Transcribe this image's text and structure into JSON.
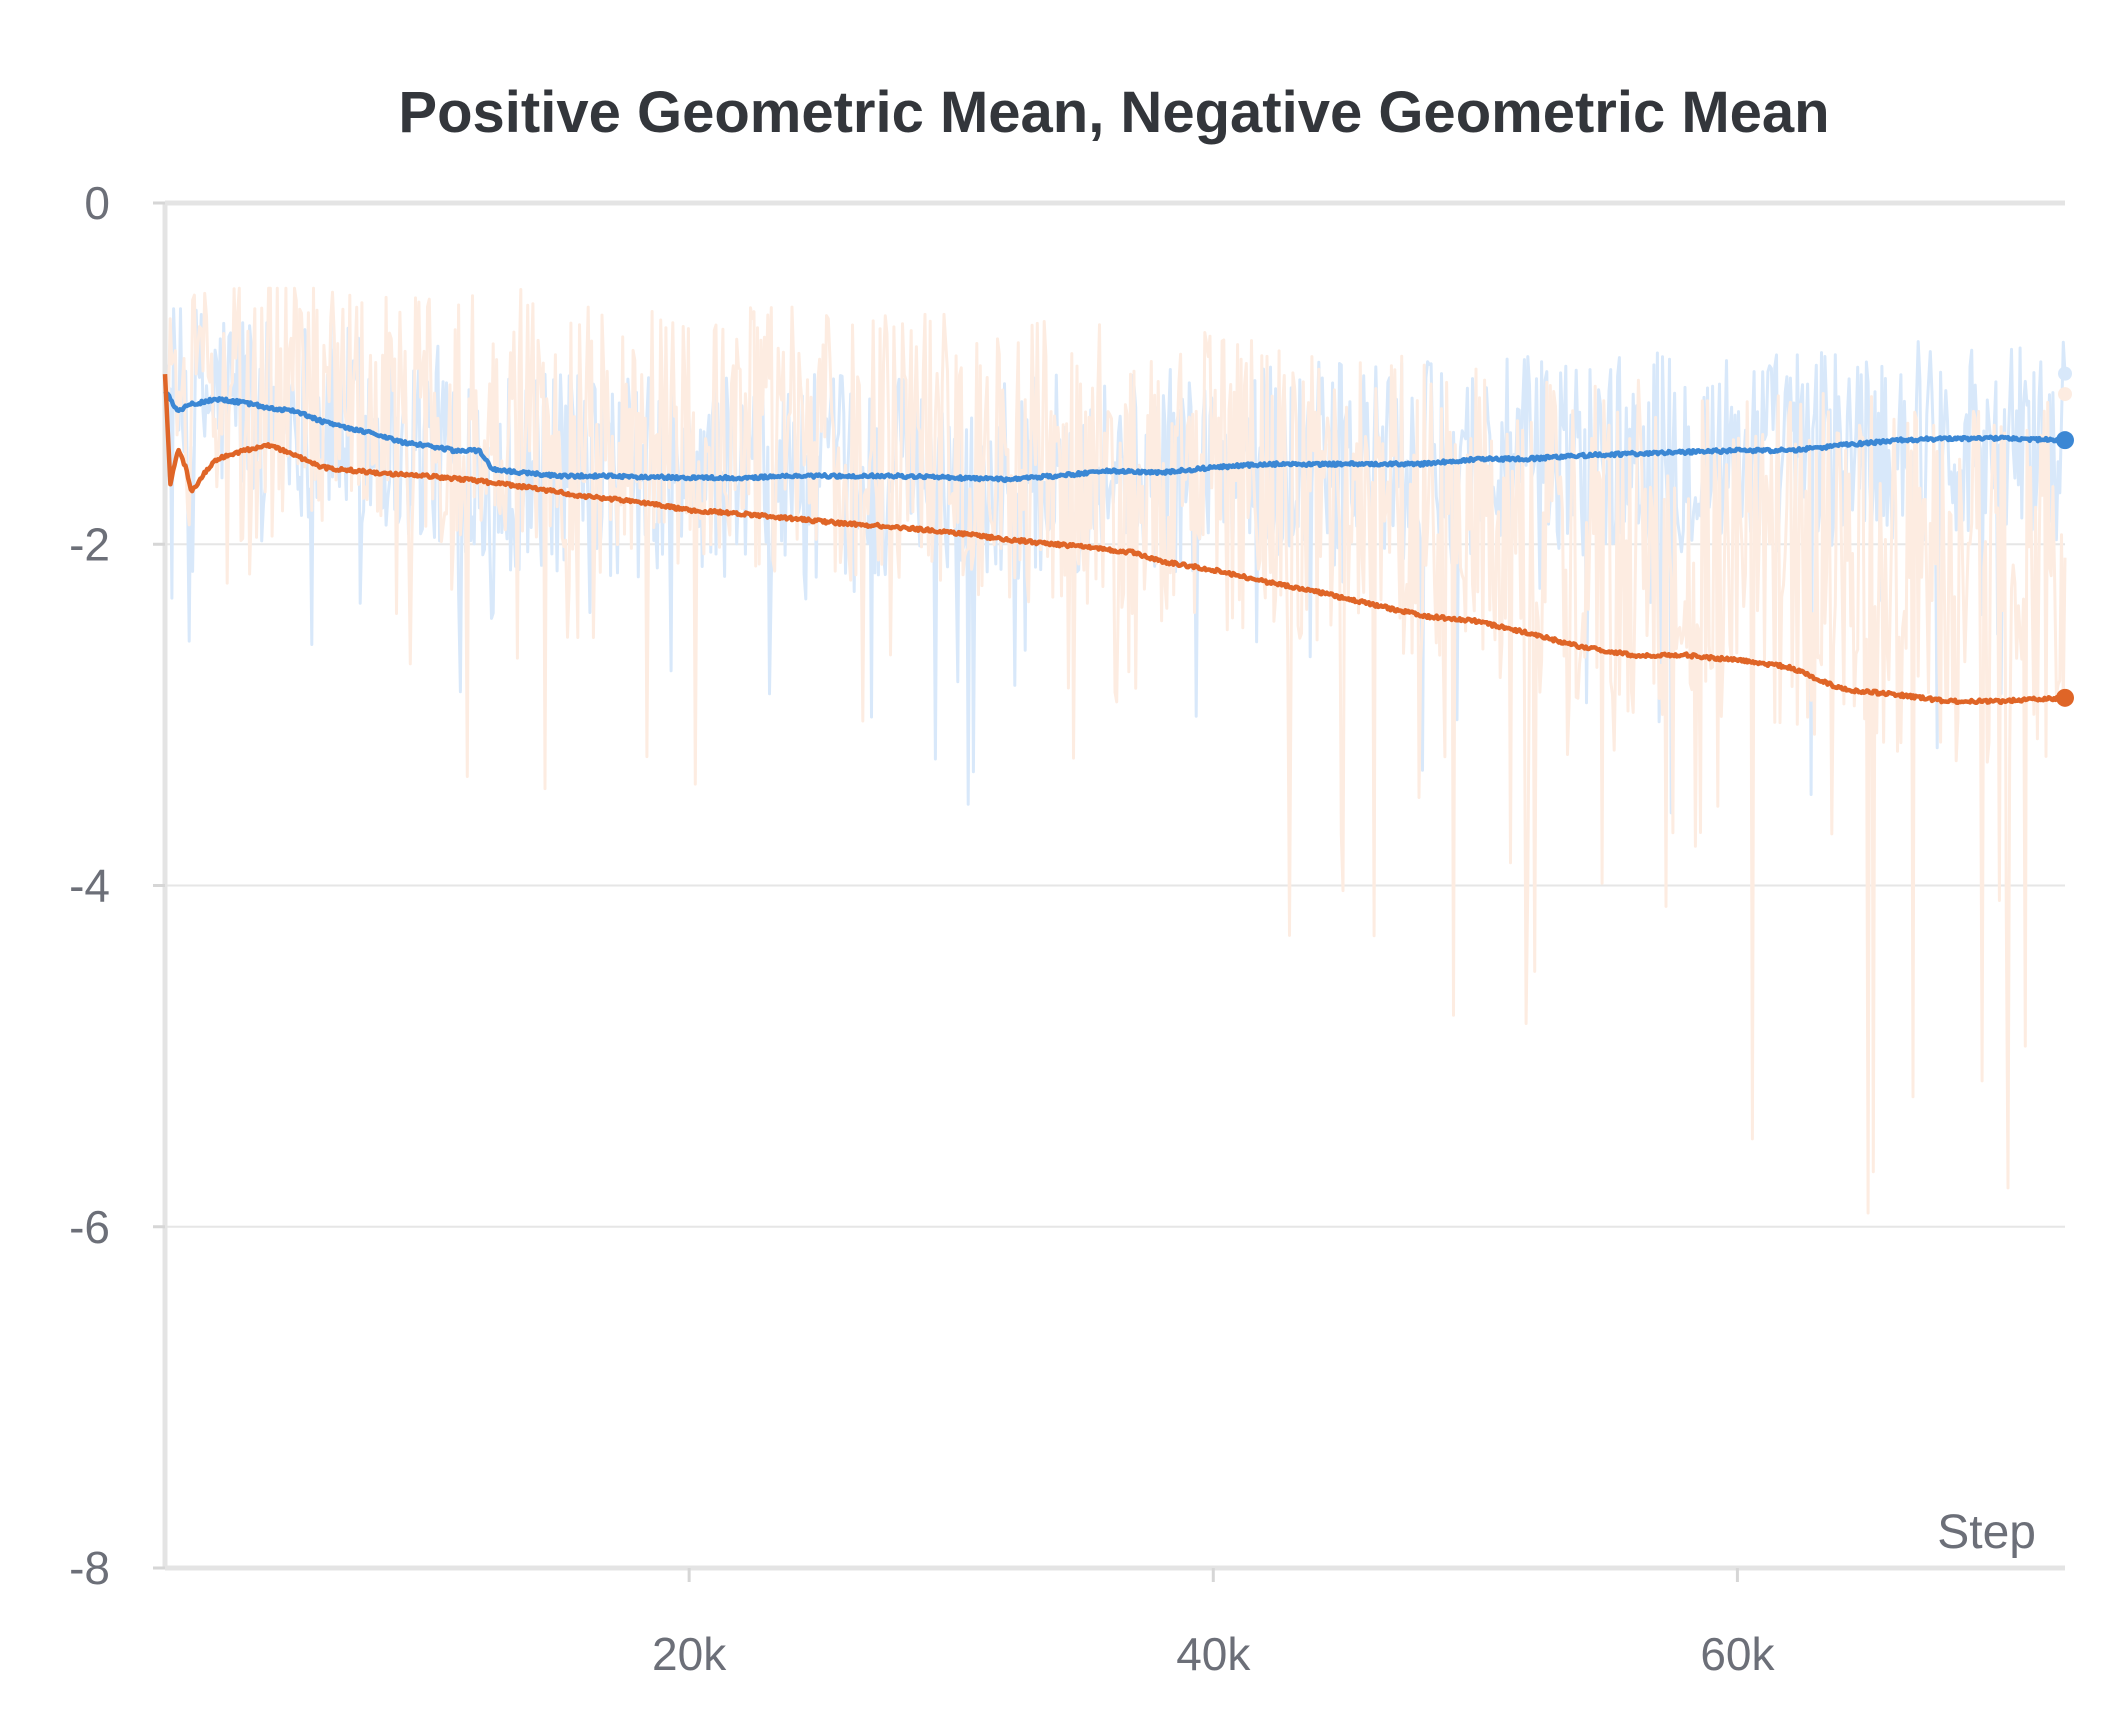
{
  "chart_data": {
    "type": "line",
    "title": "Positive Geometric Mean, Negative Geometric Mean",
    "xlabel": "Step",
    "ylabel": "",
    "xlim": [
      0,
      72500
    ],
    "ylim": [
      -8,
      0
    ],
    "grid": true,
    "x_ticks": [
      {
        "value": 20000,
        "label": "20k"
      },
      {
        "value": 40000,
        "label": "40k"
      },
      {
        "value": 60000,
        "label": "60k"
      }
    ],
    "y_ticks": [
      {
        "value": 0,
        "label": "0"
      },
      {
        "value": -2,
        "label": "-2"
      },
      {
        "value": -4,
        "label": "-4"
      },
      {
        "value": -6,
        "label": "-6"
      },
      {
        "value": -8,
        "label": "-8"
      }
    ],
    "series": [
      {
        "name": "Positive Geometric Mean",
        "color": "#3b87d4",
        "raw_color": "#d8e8fa",
        "raw_last_value": -1.0,
        "x": [
          0,
          500,
          1000,
          2000,
          3000,
          4000,
          5000,
          6000,
          7000,
          8000,
          9000,
          10000,
          11000,
          12000,
          12500,
          13000,
          15000,
          17000,
          20000,
          22000,
          24000,
          26000,
          28000,
          30000,
          32000,
          34000,
          36000,
          38000,
          40000,
          42000,
          44000,
          46000,
          48000,
          50000,
          52000,
          54000,
          56000,
          58000,
          60000,
          62000,
          64000,
          66000,
          68000,
          70000,
          72500
        ],
        "values": [
          -1.1,
          -1.22,
          -1.18,
          -1.15,
          -1.17,
          -1.2,
          -1.22,
          -1.28,
          -1.32,
          -1.35,
          -1.4,
          -1.42,
          -1.45,
          -1.45,
          -1.56,
          -1.57,
          -1.6,
          -1.6,
          -1.61,
          -1.61,
          -1.6,
          -1.6,
          -1.6,
          -1.61,
          -1.62,
          -1.6,
          -1.57,
          -1.58,
          -1.55,
          -1.53,
          -1.53,
          -1.53,
          -1.53,
          -1.5,
          -1.5,
          -1.48,
          -1.47,
          -1.46,
          -1.45,
          -1.45,
          -1.42,
          -1.39,
          -1.38,
          -1.38,
          -1.39
        ]
      },
      {
        "name": "Negative Geometric Mean",
        "color": "#df6527",
        "raw_color": "#fdece1",
        "raw_last_value": -1.12,
        "x": [
          0,
          200,
          500,
          800,
          1000,
          1500,
          2000,
          3000,
          4000,
          5000,
          6000,
          8000,
          10000,
          12000,
          14000,
          16000,
          18000,
          20000,
          22000,
          24000,
          26000,
          28000,
          30000,
          32000,
          34000,
          36000,
          37000,
          38000,
          40000,
          42000,
          44000,
          46000,
          48000,
          50000,
          52000,
          54000,
          56000,
          58000,
          60000,
          62000,
          64000,
          66000,
          68000,
          70000,
          72500
        ],
        "values": [
          -1.0,
          -1.65,
          -1.45,
          -1.55,
          -1.7,
          -1.58,
          -1.5,
          -1.45,
          -1.42,
          -1.48,
          -1.55,
          -1.58,
          -1.6,
          -1.63,
          -1.67,
          -1.72,
          -1.75,
          -1.8,
          -1.82,
          -1.85,
          -1.88,
          -1.9,
          -1.93,
          -1.97,
          -2.0,
          -2.03,
          -2.05,
          -2.1,
          -2.15,
          -2.22,
          -2.28,
          -2.35,
          -2.42,
          -2.45,
          -2.52,
          -2.6,
          -2.65,
          -2.65,
          -2.68,
          -2.72,
          -2.85,
          -2.88,
          -2.92,
          -2.92,
          -2.9
        ]
      }
    ]
  }
}
